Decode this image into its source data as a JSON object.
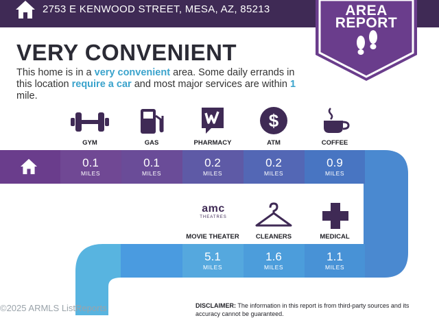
{
  "header": {
    "address": "2753 E KENWOOD STREET, MESA, AZ, 85213",
    "badge_line1": "AREA",
    "badge_line2": "REPORT"
  },
  "main": {
    "title": "VERY CONVENIENT",
    "desc_parts": [
      "This home is in a ",
      "very convenient",
      " area. Some daily errands in this location ",
      "require a car",
      " and most major services are within ",
      "1",
      " mile."
    ]
  },
  "amenities_row1": [
    {
      "label": "GYM",
      "value": "0.1",
      "unit": "MILES",
      "icon": "dumbbell-icon"
    },
    {
      "label": "GAS",
      "value": "0.1",
      "unit": "MILES",
      "icon": "gas-pump-icon"
    },
    {
      "label": "PHARMACY",
      "value": "0.2",
      "unit": "MILES",
      "icon": "pharmacy-icon"
    },
    {
      "label": "ATM",
      "value": "0.2",
      "unit": "MILES",
      "icon": "dollar-icon"
    },
    {
      "label": "COFFEE",
      "value": "0.9",
      "unit": "MILES",
      "icon": "coffee-cup-icon"
    }
  ],
  "amenities_row2": [
    {
      "label": "MOVIE THEATER",
      "value": "5.1",
      "unit": "MILES",
      "icon": "amc-theatres-icon"
    },
    {
      "label": "CLEANERS",
      "value": "1.6",
      "unit": "MILES",
      "icon": "hanger-icon"
    },
    {
      "label": "MEDICAL",
      "value": "1.1",
      "unit": "MILES",
      "icon": "medical-cross-icon"
    }
  ],
  "amc": {
    "line1": "amc",
    "line2": "THEATRES"
  },
  "atm_symbol": "$",
  "disclaimer": {
    "label": "DISCLAIMER:",
    "text": " The information in this report is from third-party sources and its accuracy cannot be guaranteed."
  },
  "footer": {
    "watermark": "©2025 ARMLS",
    "brand": "ListReports"
  },
  "colors": {
    "header": "#3f2a55",
    "purple": "#6a3d8c",
    "blue": "#4a8fd4",
    "light_blue": "#58b4e0",
    "accent_text": "#3aa3cc"
  }
}
